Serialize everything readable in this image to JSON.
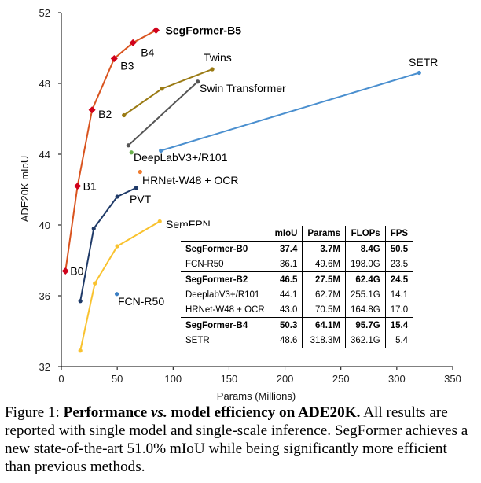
{
  "chart_data": {
    "type": "line",
    "xlabel": "Params (Millions)",
    "ylabel": "ADE20K mIoU",
    "xlim": [
      0,
      350
    ],
    "ylim": [
      32,
      52
    ],
    "xticks": [
      0,
      50,
      100,
      150,
      200,
      250,
      300,
      350
    ],
    "yticks": [
      32,
      36,
      40,
      44,
      48,
      52
    ],
    "grid": false,
    "series": [
      {
        "name": "SegFormer",
        "color": "#d9531e",
        "marker": "diamond",
        "x": [
          3.7,
          14.5,
          27.5,
          47.3,
          64.1,
          84.7
        ],
        "y": [
          37.4,
          42.2,
          46.5,
          49.4,
          50.3,
          51.0
        ],
        "point_labels": [
          "B0",
          "B1",
          "B2",
          "B3",
          "B4",
          "SegFormer-B5"
        ]
      },
      {
        "name": "Twins",
        "color": "#9a7a13",
        "marker": "circle",
        "x": [
          56,
          90,
          135
        ],
        "y": [
          46.2,
          47.7,
          48.8
        ]
      },
      {
        "name": "Swin Transformer",
        "color": "#555555",
        "marker": "circle",
        "x": [
          60,
          122
        ],
        "y": [
          44.5,
          48.1
        ]
      },
      {
        "name": "SETR",
        "color": "#4a8fcf",
        "marker": "circle",
        "x": [
          89,
          320
        ],
        "y": [
          44.2,
          48.6
        ]
      },
      {
        "name": "DeepLabV3+/R101",
        "color": "#6ab04c",
        "marker": "circle",
        "x": [
          62.7
        ],
        "y": [
          44.1
        ]
      },
      {
        "name": "HRNet-W48 + OCR",
        "color": "#ef7d31",
        "marker": "circle",
        "x": [
          70.5
        ],
        "y": [
          43.0
        ]
      },
      {
        "name": "PVT",
        "color": "#1f3a68",
        "marker": "circle",
        "x": [
          17,
          29,
          50,
          67
        ],
        "y": [
          35.7,
          39.8,
          41.6,
          42.1
        ]
      },
      {
        "name": "SemFPN",
        "color": "#f9c22e",
        "marker": "circle",
        "x": [
          17,
          30,
          50,
          88
        ],
        "y": [
          32.9,
          36.7,
          38.8,
          40.2
        ]
      },
      {
        "name": "FCN-R50",
        "color": "#3b7fc4",
        "marker": "circle",
        "x": [
          49.6
        ],
        "y": [
          36.1
        ]
      }
    ],
    "table": {
      "headers": [
        "",
        "mIoU",
        "Params",
        "FLOPs",
        "FPS"
      ],
      "groups": [
        [
          {
            "cells": [
              "SegFormer-B0",
              "37.4",
              "3.7M",
              "8.4G",
              "50.5"
            ],
            "bold": true
          },
          {
            "cells": [
              "FCN-R50",
              "36.1",
              "49.6M",
              "198.0G",
              "23.5"
            ],
            "bold": false
          }
        ],
        [
          {
            "cells": [
              "SegFormer-B2",
              "46.5",
              "27.5M",
              "62.4G",
              "24.5"
            ],
            "bold": true
          },
          {
            "cells": [
              "DeeplabV3+/R101",
              "44.1",
              "62.7M",
              "255.1G",
              "14.1"
            ],
            "bold": false
          },
          {
            "cells": [
              "HRNet-W48 + OCR",
              "43.0",
              "70.5M",
              "164.8G",
              "17.0"
            ],
            "bold": false
          }
        ],
        [
          {
            "cells": [
              "SegFormer-B4",
              "50.3",
              "64.1M",
              "95.7G",
              "15.4"
            ],
            "bold": true
          },
          {
            "cells": [
              "SETR",
              "48.6",
              "318.3M",
              "362.1G",
              "5.4"
            ],
            "bold": false
          }
        ]
      ]
    }
  },
  "caption": {
    "label": "Figure 1:",
    "title_part1": "Performance",
    "title_vs": "vs.",
    "title_part2": "model efficiency on ADE20K.",
    "body": "All results are reported with single model and single-scale inference. SegFormer achieves a new state-of-the-art 51.0% mIoU while being significantly more efficient than previous methods."
  }
}
